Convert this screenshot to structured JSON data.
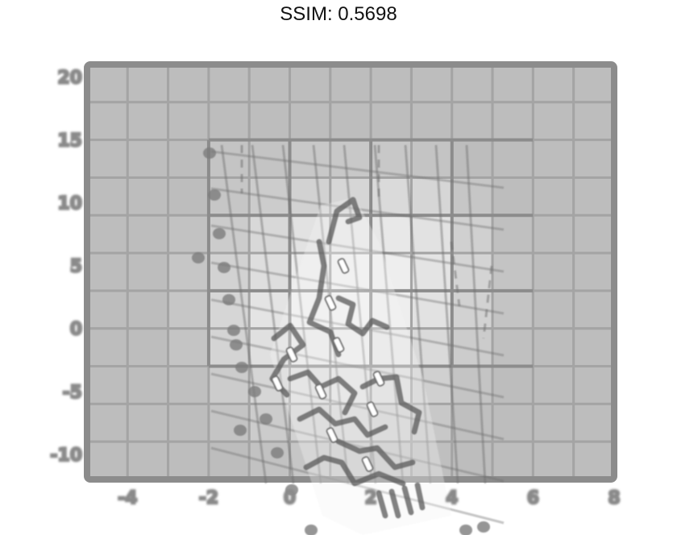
{
  "title": "SSIM: 0.5698",
  "chart_data": {
    "type": "heatmap",
    "title": "SSIM: 0.5698",
    "xlabel": "",
    "ylabel": "",
    "x_ticks": [
      "-4",
      "-2",
      "0",
      "2",
      "4",
      "6",
      "8"
    ],
    "y_ticks": [
      "20",
      "15",
      "10",
      "5",
      "0",
      "-5",
      "-10"
    ],
    "xlim": [
      -5,
      8
    ],
    "ylim": [
      -12,
      21
    ],
    "grid": true,
    "rows": 11,
    "cols": 13,
    "shades": [
      [
        "#bdbdbd",
        "#bdbdbd",
        "#bdbdbd",
        "#bdbdbd",
        "#bdbdbd",
        "#bdbdbd",
        "#bdbdbd",
        "#bdbdbd",
        "#bdbdbd",
        "#bdbdbd",
        "#bdbdbd",
        "#bdbdbd",
        "#bdbdbd"
      ],
      [
        "#bdbdbd",
        "#bdbdbd",
        "#bdbdbd",
        "#bdbdbd",
        "#bdbdbd",
        "#bdbdbd",
        "#bdbdbd",
        "#bdbdbd",
        "#bdbdbd",
        "#bdbdbd",
        "#bdbdbd",
        "#bdbdbd",
        "#bdbdbd"
      ],
      [
        "#bdbdbd",
        "#bdbdbd",
        "#bdbdbd",
        "#c4c4c4",
        "#c4c4c4",
        "#c8c8c8",
        "#c8c8c8",
        "#c8c8c8",
        "#c4c4c4",
        "#bdbdbd",
        "#bdbdbd",
        "#bdbdbd",
        "#bdbdbd"
      ],
      [
        "#bdbdbd",
        "#bdbdbd",
        "#bdbdbd",
        "#c6c6c6",
        "#cccccc",
        "#d2d2d2",
        "#d6d6d6",
        "#dadada",
        "#d6d6d6",
        "#c6c6c6",
        "#bdbdbd",
        "#bdbdbd",
        "#bdbdbd"
      ],
      [
        "#bdbdbd",
        "#bdbdbd",
        "#c2c2c2",
        "#cccccc",
        "#d8d8d8",
        "#e2e2e2",
        "#e6e6e6",
        "#e8e8e8",
        "#e2e2e2",
        "#d0d0d0",
        "#c0c0c0",
        "#bdbdbd",
        "#bdbdbd"
      ],
      [
        "#bdbdbd",
        "#bdbdbd",
        "#c6c6c6",
        "#d2d2d2",
        "#dedede",
        "#ececec",
        "#f0f0f0",
        "#eeeeee",
        "#e4e4e4",
        "#d4d4d4",
        "#c4c4c4",
        "#bdbdbd",
        "#bdbdbd"
      ],
      [
        "#bdbdbd",
        "#bdbdbd",
        "#c6c6c6",
        "#d6d6d6",
        "#e4e4e4",
        "#efefef",
        "#f2f2f2",
        "#eeeeee",
        "#e2e2e2",
        "#d2d2d2",
        "#c4c4c4",
        "#bdbdbd",
        "#bdbdbd"
      ],
      [
        "#bdbdbd",
        "#bdbdbd",
        "#c4c4c4",
        "#d4d4d4",
        "#e0e0e0",
        "#eaeaea",
        "#ededed",
        "#e6e6e6",
        "#dadada",
        "#cccccc",
        "#c0c0c0",
        "#bdbdbd",
        "#bdbdbd"
      ],
      [
        "#bdbdbd",
        "#bdbdbd",
        "#bfbfbf",
        "#cccccc",
        "#d6d6d6",
        "#dedede",
        "#e2e2e2",
        "#dcdcdc",
        "#d0d0d0",
        "#c4c4c4",
        "#bdbdbd",
        "#bdbdbd",
        "#bdbdbd"
      ],
      [
        "#bdbdbd",
        "#bdbdbd",
        "#bdbdbd",
        "#c4c4c4",
        "#cccccc",
        "#d2d2d2",
        "#d6d6d6",
        "#d0d0d0",
        "#c8c8c8",
        "#bfbfbf",
        "#bdbdbd",
        "#bdbdbd",
        "#bdbdbd"
      ],
      [
        "#bdbdbd",
        "#bdbdbd",
        "#bdbdbd",
        "#bdbdbd",
        "#c2c2c2",
        "#c6c6c6",
        "#c8c8c8",
        "#c4c4c4",
        "#bfbfbf",
        "#bdbdbd",
        "#bdbdbd",
        "#bdbdbd",
        "#bdbdbd"
      ]
    ],
    "colors": {
      "frame": "#8c8c8c",
      "cell": "#bdbdbd",
      "overlay": "#6e6e6e",
      "highlight": "#f4f4f4"
    }
  }
}
